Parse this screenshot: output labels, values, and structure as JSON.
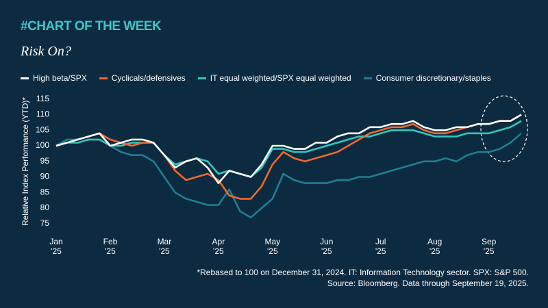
{
  "header": "#CHART OF THE WEEK",
  "chart_data": {
    "type": "line",
    "title": "Risk On?",
    "y_label": "Relative Index Performance (YTD)*",
    "x": [
      0,
      0.2,
      0.4,
      0.6,
      0.8,
      1.0,
      1.2,
      1.4,
      1.6,
      1.8,
      2.0,
      2.2,
      2.4,
      2.6,
      2.8,
      3.0,
      3.2,
      3.4,
      3.6,
      3.8,
      4.0,
      4.2,
      4.4,
      4.6,
      4.8,
      5.0,
      5.2,
      5.4,
      5.6,
      5.8,
      6.0,
      6.2,
      6.4,
      6.6,
      6.8,
      7.0,
      7.2,
      7.4,
      7.6,
      7.8,
      8.0,
      8.2,
      8.4,
      8.6
    ],
    "xlim": [
      0,
      8.6
    ],
    "xticks": [
      {
        "value": 0,
        "label": "Jan\n'25"
      },
      {
        "value": 1,
        "label": "Feb\n'25"
      },
      {
        "value": 2,
        "label": "Mar\n'25"
      },
      {
        "value": 3,
        "label": "Apr\n'25"
      },
      {
        "value": 4,
        "label": "May\n'25"
      },
      {
        "value": 5,
        "label": "Jun\n'25"
      },
      {
        "value": 6,
        "label": "Jul\n'25"
      },
      {
        "value": 7,
        "label": "Aug\n'25"
      },
      {
        "value": 8,
        "label": "Sep\n'25"
      }
    ],
    "ylim": [
      73,
      117
    ],
    "yticks": [
      75,
      80,
      85,
      90,
      95,
      100,
      105,
      110,
      115
    ],
    "series": [
      {
        "name": "Consumer discretionary/staples",
        "color": "#1f7f93",
        "values": [
          100,
          102,
          102,
          103,
          104,
          100,
          98,
          97,
          97,
          95,
          90,
          85,
          83,
          82,
          81,
          81,
          86,
          79,
          77,
          80,
          83,
          91,
          89,
          88,
          88,
          88,
          89,
          89,
          90,
          90,
          91,
          92,
          93,
          94,
          95,
          95,
          96,
          95,
          97,
          98,
          98,
          99,
          101,
          104
        ]
      },
      {
        "name": "IT equal weighted/SPX equal weighted",
        "color": "#2ec9bd",
        "values": [
          100,
          101,
          101,
          102,
          102,
          100,
          100,
          101,
          101,
          101,
          97,
          94,
          95,
          96,
          95,
          91,
          92,
          91,
          90,
          93,
          99,
          99,
          98,
          98,
          99,
          100,
          101,
          102,
          103,
          103,
          104,
          105,
          105,
          105,
          104,
          103,
          103,
          103,
          104,
          104,
          104,
          105,
          106,
          108
        ]
      },
      {
        "name": "Cyclicals/defensives",
        "color": "#ee6a2f",
        "values": [
          100,
          101,
          102,
          103,
          104,
          102,
          101,
          100,
          101,
          101,
          97,
          92,
          89,
          90,
          91,
          89,
          84,
          83,
          83,
          87,
          94,
          98,
          96,
          95,
          96,
          97,
          98,
          100,
          102,
          104,
          105,
          106,
          106,
          107,
          105,
          104,
          104,
          105,
          106,
          107,
          107,
          108,
          108,
          110
        ]
      },
      {
        "name": "High beta/SPX",
        "color": "#ffffff",
        "values": [
          100,
          101,
          102,
          103,
          104,
          100,
          101,
          102,
          102,
          101,
          97,
          93,
          95,
          96,
          93,
          88,
          92,
          91,
          90,
          94,
          100,
          100,
          99,
          99,
          101,
          101,
          103,
          104,
          104,
          106,
          106,
          107,
          107,
          108,
          106,
          105,
          105,
          106,
          106,
          107,
          107,
          108,
          108,
          110
        ]
      }
    ],
    "legend_order": [
      3,
      2,
      1,
      0
    ],
    "notes": [
      "*Rebased to 100 on December 31, 2024. IT: Information Technology sector. SPX: S&P 500.",
      "Source: Bloomberg. Data through September 19, 2025."
    ]
  }
}
